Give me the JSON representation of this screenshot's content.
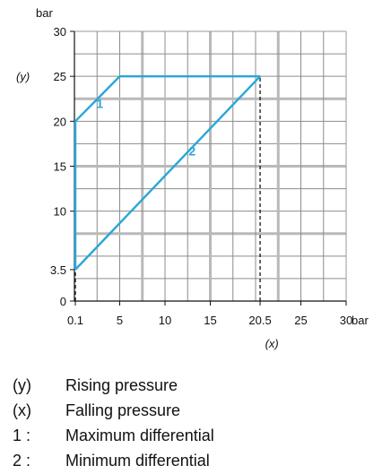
{
  "chart_data": {
    "type": "line",
    "unit_y": "bar",
    "unit_x": "bar",
    "y_axis_tag": "(y)",
    "x_axis_tag": "(x)",
    "xlim": [
      0,
      30
    ],
    "ylim": [
      0,
      30
    ],
    "x_ticks": [
      {
        "value": 0.1,
        "label": "0.1"
      },
      {
        "value": 5,
        "label": "5"
      },
      {
        "value": 10,
        "label": "10"
      },
      {
        "value": 15,
        "label": "15"
      },
      {
        "value": 20.5,
        "label": "20.5"
      },
      {
        "value": 25,
        "label": "25"
      },
      {
        "value": 30,
        "label": "30"
      }
    ],
    "y_ticks": [
      {
        "value": 0,
        "label": "0"
      },
      {
        "value": 3.5,
        "label": "3.5"
      },
      {
        "value": 10,
        "label": "10"
      },
      {
        "value": 15,
        "label": "15"
      },
      {
        "value": 20,
        "label": "20"
      },
      {
        "value": 25,
        "label": "25"
      },
      {
        "value": 30,
        "label": "30"
      }
    ],
    "grid": true,
    "series": [
      {
        "label": "1",
        "color": "#2aa6d8",
        "points": [
          [
            0.1,
            3.5
          ],
          [
            0.1,
            20
          ],
          [
            5,
            25
          ],
          [
            20.5,
            25
          ]
        ],
        "label_at": [
          2.8,
          21.5
        ]
      },
      {
        "label": "2",
        "color": "#2aa6d8",
        "points": [
          [
            0.1,
            3.5
          ],
          [
            20.5,
            25
          ]
        ],
        "label_at": [
          13.0,
          16.2
        ]
      }
    ],
    "reference_lines": [
      {
        "points": [
          [
            0.1,
            0
          ],
          [
            0.1,
            3.5
          ]
        ],
        "style": "dashed",
        "color": "#111111"
      },
      {
        "points": [
          [
            20.5,
            0
          ],
          [
            20.5,
            25
          ]
        ],
        "style": "dashed",
        "color": "#111111"
      }
    ]
  },
  "legend": [
    {
      "key": "(y)",
      "text": "Rising pressure"
    },
    {
      "key": "(x)",
      "text": "Falling pressure"
    },
    {
      "key": "1 :",
      "text": "Maximum differential"
    },
    {
      "key": "2 :",
      "text": "Minimum differential"
    }
  ]
}
